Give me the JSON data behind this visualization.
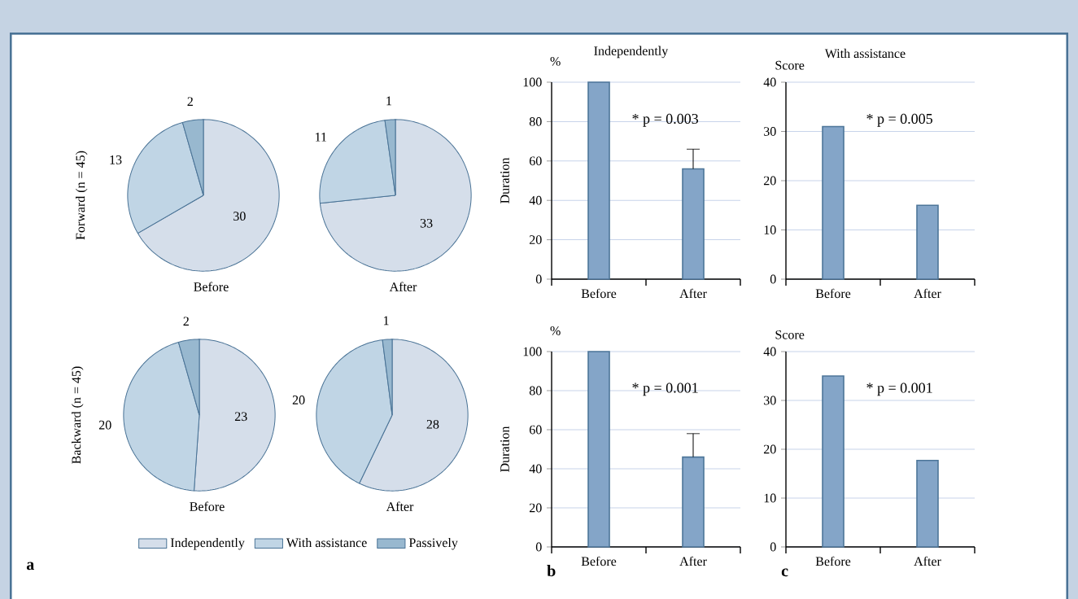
{
  "chart_data": [
    {
      "type": "pie",
      "xlabel": "Before",
      "ylabel": "Forward (n = 45)",
      "categories": [
        null,
        null,
        null
      ],
      "values": [
        30,
        13,
        2
      ],
      "colors": [
        "#d5deea",
        "#c0d5e5",
        "#98b8cf"
      ],
      "data_labels": true
    },
    {
      "type": "pie",
      "xlabel": "After",
      "categories": [
        null,
        null,
        null
      ],
      "values": [
        33,
        11,
        1
      ],
      "colors": [
        "#d5deea",
        "#c0d5e5",
        "#98b8cf"
      ],
      "data_labels": true
    },
    {
      "type": "pie",
      "xlabel": "Before",
      "ylabel": "Backward (n = 45)",
      "categories": [
        "Independently",
        "With assistance",
        "Passively"
      ],
      "values": [
        23,
        20,
        2
      ],
      "colors": [
        "#d5deea",
        "#c0d5e5",
        "#98b8cf"
      ],
      "data_labels": true,
      "legend": "bottom",
      "annotations": [
        "a"
      ]
    },
    {
      "type": "pie",
      "xlabel": "After",
      "categories": [
        null,
        null,
        null
      ],
      "values": [
        28,
        20,
        1
      ],
      "colors": [
        "#d5deea",
        "#c0d5e5",
        "#98b8cf"
      ],
      "data_labels": true
    },
    {
      "type": "bar",
      "title": "Independently",
      "ylabel": "Duration",
      "categories": [
        "Before",
        "After"
      ],
      "values": [
        100,
        56
      ],
      "errors": [
        null,
        10
      ],
      "color": "#84a5c8",
      "ylim": [
        0,
        100
      ],
      "yticks": [
        0,
        20,
        40,
        60,
        80,
        100
      ],
      "grid": "y",
      "annotations": [
        "* p = 0.003",
        "%"
      ]
    },
    {
      "type": "bar",
      "title": "With assistance",
      "ylabel": "Score",
      "categories": [
        "Before",
        "After"
      ],
      "values": [
        31,
        15
      ],
      "color": "#84a5c8",
      "ylim": [
        0,
        40
      ],
      "yticks": [
        0,
        10,
        20,
        30,
        40
      ],
      "grid": "y",
      "annotations": [
        "* p = 0.005"
      ]
    },
    {
      "type": "bar",
      "ylabel": "Duration",
      "categories": [
        "Before",
        "After"
      ],
      "values": [
        100,
        46
      ],
      "errors": [
        null,
        12
      ],
      "color": "#84a5c8",
      "ylim": [
        0,
        100
      ],
      "yticks": [
        0,
        20,
        40,
        60,
        80,
        100
      ],
      "grid": "y",
      "annotations": [
        "* p = 0.001",
        "%",
        "b"
      ]
    },
    {
      "type": "bar",
      "ylabel": "Score",
      "categories": [
        "Before",
        "After"
      ],
      "values": [
        35,
        17.7
      ],
      "color": "#84a5c8",
      "ylim": [
        0,
        40
      ],
      "yticks": [
        0,
        10,
        20,
        30,
        40
      ],
      "grid": "y",
      "annotations": [
        "* p = 0.001",
        "c"
      ]
    }
  ]
}
